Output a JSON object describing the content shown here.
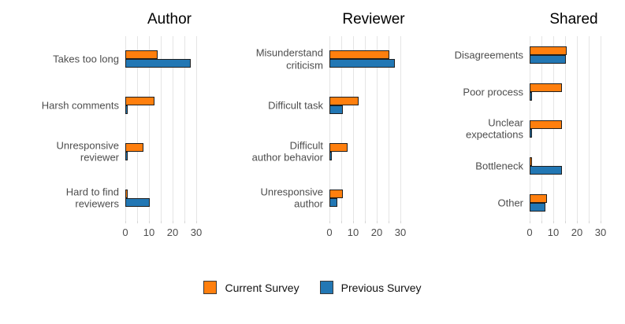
{
  "figure": {
    "background_color": "#ffffff",
    "bar_edge_color": "#1f1f1f",
    "grid_color": "#e5e5e5",
    "axis_text_color": "#4d4d4d",
    "title_color": "#000000"
  },
  "legend": {
    "position": "bottom-center",
    "items": [
      {
        "label": "Current Survey",
        "color": "#ff7f0e"
      },
      {
        "label": "Previous Survey",
        "color": "#2277b4"
      }
    ]
  },
  "chart_data": [
    {
      "type": "bar",
      "orientation": "horizontal",
      "title": "Author",
      "categories": [
        "Takes too long",
        "Harsh comments",
        "Unresponsive\nreviewer",
        "Hard to find\nreviewers"
      ],
      "series": [
        {
          "name": "Current Survey",
          "color": "#ff7f0e",
          "values": [
            13,
            11.5,
            7,
            0.4
          ]
        },
        {
          "name": "Previous Survey",
          "color": "#2277b4",
          "values": [
            27,
            0.4,
            0.4,
            9.5
          ]
        }
      ],
      "xlim": [
        0,
        35
      ],
      "xticks": [
        0,
        10,
        20,
        30
      ],
      "minor_xticks": [
        5,
        15,
        25
      ],
      "grid": true
    },
    {
      "type": "bar",
      "orientation": "horizontal",
      "title": "Reviewer",
      "categories": [
        "Misunderstand\ncriticism",
        "Difficult task",
        "Difficult\nauthor behavior",
        "Unresponsive\nauthor"
      ],
      "series": [
        {
          "name": "Current Survey",
          "color": "#ff7f0e",
          "values": [
            24.5,
            11.5,
            7,
            5
          ]
        },
        {
          "name": "Previous Survey",
          "color": "#2277b4",
          "values": [
            27,
            5,
            0.4,
            2.5
          ]
        }
      ],
      "xlim": [
        0,
        35
      ],
      "xticks": [
        0,
        10,
        20,
        30
      ],
      "minor_xticks": [
        5,
        15,
        25
      ],
      "grid": true
    },
    {
      "type": "bar",
      "orientation": "horizontal",
      "title": "Shared",
      "categories": [
        "Disagreements",
        "Poor process",
        "Unclear\nexpectations",
        "Bottleneck",
        "Other"
      ],
      "series": [
        {
          "name": "Current Survey",
          "color": "#ff7f0e",
          "values": [
            15,
            13,
            13,
            0.4,
            6.5
          ]
        },
        {
          "name": "Previous Survey",
          "color": "#2277b4",
          "values": [
            14.5,
            0.4,
            0.4,
            13,
            6
          ]
        }
      ],
      "xlim": [
        0,
        35
      ],
      "xticks": [
        0,
        10,
        20,
        30
      ],
      "minor_xticks": [
        5,
        15,
        25
      ],
      "grid": true
    }
  ]
}
